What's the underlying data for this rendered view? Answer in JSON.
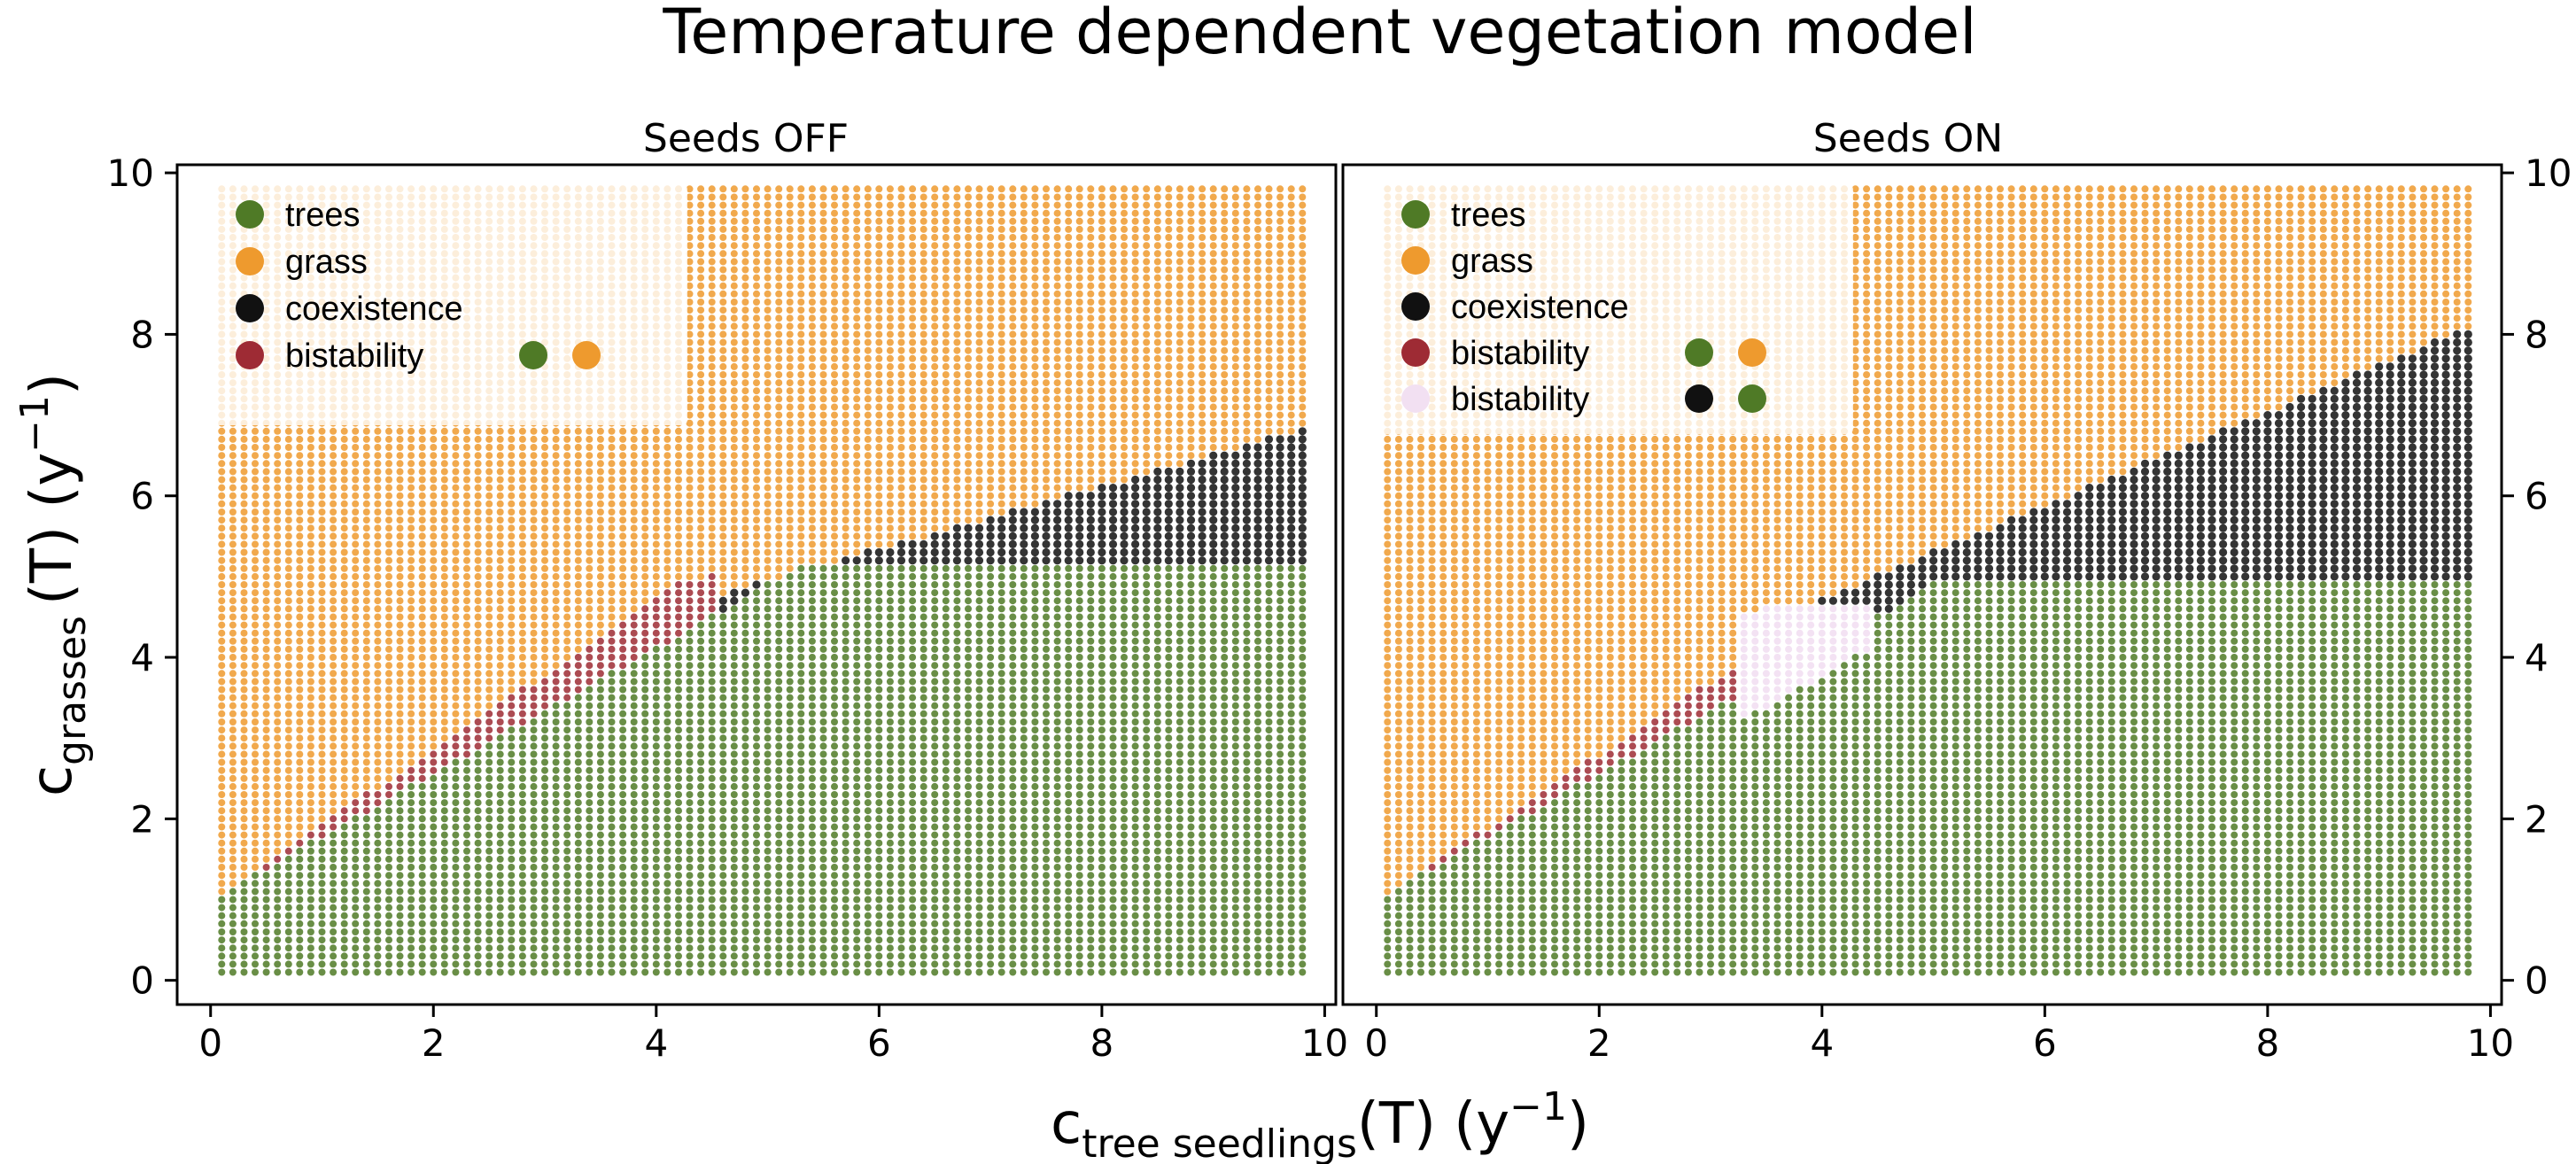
{
  "title": "Temperature dependent vegetation model",
  "ylabel": {
    "main": "c",
    "sub": "grasses",
    "rest": "(T) (y",
    "sup": "−1",
    "close": ")"
  },
  "xlabel": {
    "main": "c",
    "sub": "tree seedlings",
    "rest": "(T) (y",
    "sup": "−1",
    "close": ")"
  },
  "colors": {
    "trees": "#4f7a26",
    "grass": "#ee9a2e",
    "coexistence": "#111111",
    "bistability_tg": "#9e2b34",
    "bistability_ct": "#f2e0f2"
  },
  "chart_data": [
    {
      "type": "scatter",
      "title": "Seeds OFF",
      "xlim": [
        -0.3,
        10.1
      ],
      "ylim": [
        -0.3,
        10.1
      ],
      "xticks": [
        "0",
        "2",
        "4",
        "6",
        "8",
        "10"
      ],
      "yticks": [
        "0",
        "2",
        "4",
        "6",
        "8",
        "10"
      ],
      "ytick_side": "left",
      "grid": false,
      "legend_position": "upper-left",
      "legend": [
        {
          "label": "trees",
          "color": "#4f7a26",
          "markers": []
        },
        {
          "label": "grass",
          "color": "#ee9a2e",
          "markers": []
        },
        {
          "label": "coexistence",
          "color": "#111111",
          "markers": []
        },
        {
          "label": "bistability",
          "color": "#9e2b34",
          "markers": [
            "#4f7a26",
            "#ee9a2e"
          ]
        }
      ],
      "regions": {
        "grid_x": [
          0.1,
          9.8
        ],
        "grid_y": [
          0.1,
          9.8
        ],
        "trees_below": "min(5.1, 1.0 + 0.78x)",
        "grass_above_tree_line": "1.0 + 0.93x for x<4.3, 0.2x + 4.1 beyond",
        "coexistence": "x>4.8 above 5.1 up to 0.39x + 3.0"
      }
    },
    {
      "type": "scatter",
      "title": "Seeds ON",
      "xlim": [
        -0.3,
        10.1
      ],
      "ylim": [
        -0.3,
        10.1
      ],
      "xticks": [
        "0",
        "2",
        "4",
        "6",
        "8",
        "10"
      ],
      "yticks": [
        "0",
        "2",
        "4",
        "6",
        "8",
        "10"
      ],
      "ytick_side": "right",
      "grid": false,
      "legend_position": "upper-left",
      "legend": [
        {
          "label": "trees",
          "color": "#4f7a26",
          "markers": []
        },
        {
          "label": "grass",
          "color": "#ee9a2e",
          "markers": []
        },
        {
          "label": "coexistence",
          "color": "#111111",
          "markers": []
        },
        {
          "label": "bistability",
          "color": "#9e2b34",
          "markers": [
            "#4f7a26",
            "#ee9a2e"
          ]
        },
        {
          "label": "bistability",
          "color": "#f2e0f2",
          "markers": [
            "#111111",
            "#4f7a26"
          ]
        }
      ],
      "regions": {
        "grid_x": [
          0.1,
          9.8
        ],
        "grid_y": [
          0.1,
          9.8
        ],
        "trees_below": "min(4.9, 1.0 + 0.78x)",
        "coexistence": "x>3.8 above 4.9 up to 0.58x + 2.4",
        "bistability_ct": "x 3.3–4.3 near 4.0–4.6"
      }
    }
  ]
}
